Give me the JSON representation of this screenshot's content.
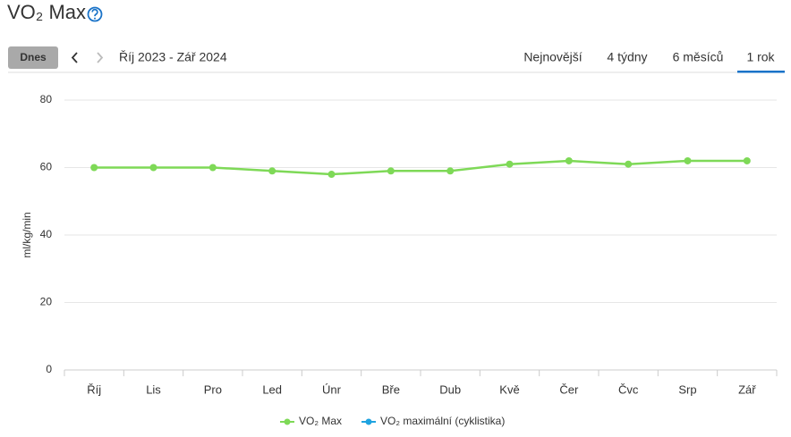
{
  "header": {
    "title": "VO₂ Max"
  },
  "toolbar": {
    "today_button": "Dnes",
    "date_range": "Říj 2023 - Zář 2024",
    "tabs": [
      "Nejnovější",
      "4 týdny",
      "6 měsíců",
      "1 rok"
    ],
    "active_tab": 3
  },
  "chart_data": {
    "type": "line",
    "y_label": "ml/kg/min",
    "categories": [
      "Říj",
      "Lis",
      "Pro",
      "Led",
      "Únr",
      "Bře",
      "Dub",
      "Kvě",
      "Čer",
      "Čvc",
      "Srp",
      "Zář"
    ],
    "series": [
      {
        "name": "VO₂ Max",
        "color": "#7ed957",
        "values": [
          60,
          60,
          60,
          59,
          58,
          59,
          59,
          61,
          62,
          61,
          62,
          62
        ]
      },
      {
        "name": "VO₂ maximální (cyklistika)",
        "color": "#1fa3e0",
        "values": [
          null,
          null,
          null,
          null,
          null,
          null,
          null,
          null,
          null,
          null,
          null,
          null
        ]
      }
    ],
    "ylim": [
      0,
      80
    ],
    "yticks": [
      0,
      20,
      40,
      60,
      80
    ],
    "grid": true,
    "legend": "bottom"
  }
}
